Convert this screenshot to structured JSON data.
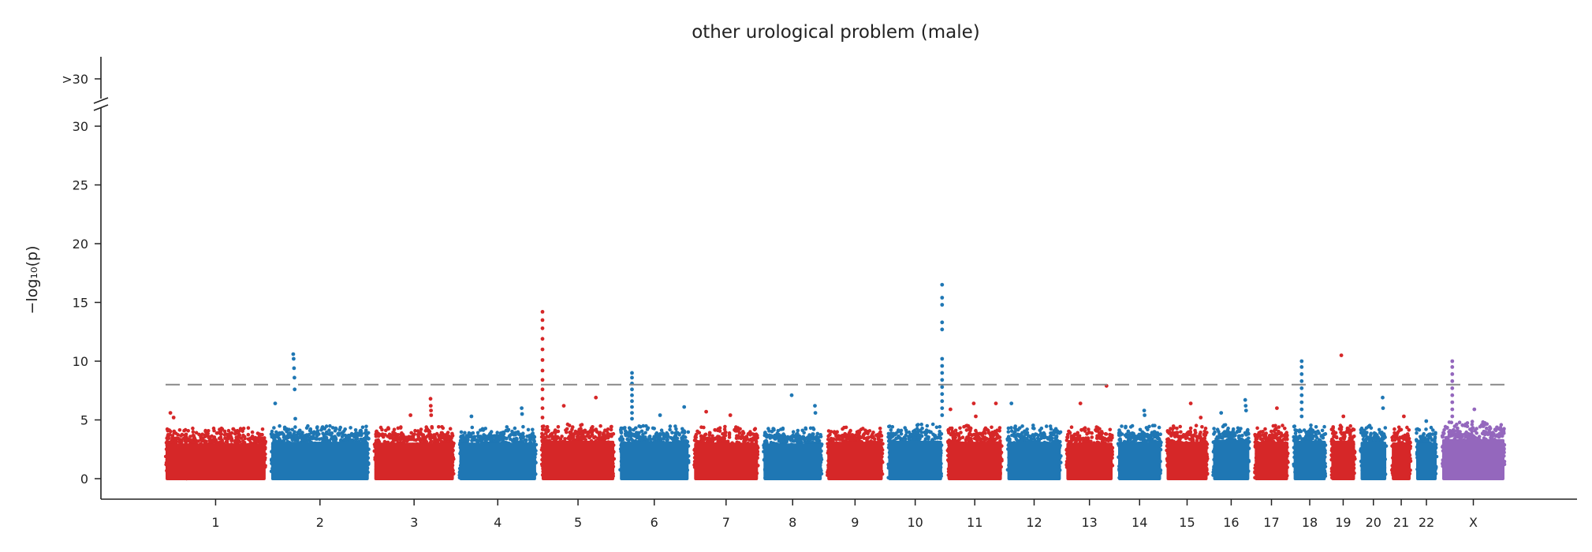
{
  "chart_data": {
    "type": "scatter",
    "subtype": "manhattan",
    "title": "other urological problem (male)",
    "ylabel": "−log₁₀(p)",
    "ylim": [
      0,
      31
    ],
    "y_ticks": [
      0,
      5,
      10,
      15,
      20,
      25,
      30
    ],
    "y_break_label": ">30",
    "significance_threshold": 8,
    "grid": false,
    "colors": {
      "odd": "#d62728",
      "even": "#1f77b4",
      "X": "#9467bd",
      "threshold": "#888888"
    },
    "chromosomes": [
      {
        "label": "1",
        "length": 249,
        "peak_max": 4,
        "hits": [
          [
            12,
            5.6
          ],
          [
            20,
            5.2
          ]
        ]
      },
      {
        "label": "2",
        "length": 243,
        "peak_max": 4.2,
        "hits": [
          [
            10,
            6.4
          ],
          [
            55,
            10.6
          ],
          [
            56,
            10.2
          ],
          [
            57,
            9.4
          ],
          [
            58,
            8.6
          ],
          [
            58.5,
            7.6
          ],
          [
            60,
            5.1
          ]
        ]
      },
      {
        "label": "3",
        "length": 198,
        "peak_max": 4.1,
        "hits": [
          [
            140,
            6.8
          ],
          [
            140.5,
            6.2
          ],
          [
            141,
            5.8
          ],
          [
            141.5,
            5.4
          ],
          [
            90,
            5.4
          ]
        ]
      },
      {
        "label": "4",
        "length": 191,
        "peak_max": 4.1,
        "hits": [
          [
            155,
            6.0
          ],
          [
            156,
            5.5
          ],
          [
            30,
            5.3
          ]
        ]
      },
      {
        "label": "5",
        "length": 181,
        "peak_max": 4.3,
        "hits": [
          [
            2,
            14.2
          ],
          [
            2,
            13.5
          ],
          [
            2,
            12.8
          ],
          [
            2,
            11.9
          ],
          [
            2,
            11.0
          ],
          [
            2,
            10.1
          ],
          [
            2,
            9.2
          ],
          [
            2,
            8.4
          ],
          [
            2,
            7.6
          ],
          [
            2,
            6.8
          ],
          [
            2,
            6.0
          ],
          [
            2,
            5.2
          ],
          [
            55,
            6.2
          ],
          [
            135,
            6.9
          ]
        ]
      },
      {
        "label": "6",
        "length": 171,
        "peak_max": 4.2,
        "hits": [
          [
            30,
            9.0
          ],
          [
            30,
            8.6
          ],
          [
            30,
            8.1
          ],
          [
            30,
            7.6
          ],
          [
            30,
            7.1
          ],
          [
            30,
            6.6
          ],
          [
            30,
            6.1
          ],
          [
            30,
            5.6
          ],
          [
            30,
            5.1
          ],
          [
            100,
            5.4
          ],
          [
            160,
            6.1
          ]
        ]
      },
      {
        "label": "7",
        "length": 159,
        "peak_max": 4.1,
        "hits": [
          [
            30,
            5.7
          ],
          [
            90,
            5.4
          ]
        ]
      },
      {
        "label": "8",
        "length": 145,
        "peak_max": 4.0,
        "hits": [
          [
            70,
            7.1
          ],
          [
            128,
            6.2
          ],
          [
            129,
            5.6
          ]
        ]
      },
      {
        "label": "9",
        "length": 138,
        "peak_max": 4.2,
        "hits": []
      },
      {
        "label": "10",
        "length": 134,
        "peak_max": 4.3,
        "hits": [
          [
            135,
            16.5
          ],
          [
            135,
            15.4
          ],
          [
            135,
            14.8
          ],
          [
            135,
            13.3
          ],
          [
            135,
            12.7
          ],
          [
            135,
            10.2
          ],
          [
            135,
            9.6
          ],
          [
            135,
            9.0
          ],
          [
            135,
            8.4
          ],
          [
            135,
            7.8
          ],
          [
            135,
            7.2
          ],
          [
            135,
            6.6
          ],
          [
            135,
            6.0
          ],
          [
            135,
            5.4
          ]
        ]
      },
      {
        "label": "11",
        "length": 135,
        "peak_max": 4.2,
        "hits": [
          [
            7,
            5.9
          ],
          [
            65,
            6.4
          ],
          [
            70,
            5.3
          ],
          [
            120,
            6.4
          ]
        ]
      },
      {
        "label": "12",
        "length": 133,
        "peak_max": 4.2,
        "hits": [
          [
            10,
            6.4
          ]
        ]
      },
      {
        "label": "13",
        "length": 115,
        "peak_max": 4.1,
        "hits": [
          [
            35,
            6.4
          ],
          [
            100,
            7.9
          ]
        ]
      },
      {
        "label": "14",
        "length": 107,
        "peak_max": 4.2,
        "hits": [
          [
            65,
            5.8
          ],
          [
            66,
            5.4
          ]
        ]
      },
      {
        "label": "15",
        "length": 102,
        "peak_max": 4.2,
        "hits": [
          [
            60,
            6.4
          ],
          [
            85,
            5.2
          ]
        ]
      },
      {
        "label": "16",
        "length": 90,
        "peak_max": 4.4,
        "hits": [
          [
            80,
            6.7
          ],
          [
            81,
            6.2
          ],
          [
            82,
            5.8
          ],
          [
            20,
            5.6
          ]
        ]
      },
      {
        "label": "17",
        "length": 83,
        "peak_max": 4.2,
        "hits": [
          [
            55,
            6.0
          ]
        ]
      },
      {
        "label": "18",
        "length": 80,
        "peak_max": 4.3,
        "hits": [
          [
            20,
            10.0
          ],
          [
            20,
            9.5
          ],
          [
            20,
            8.9
          ],
          [
            20,
            8.3
          ],
          [
            20,
            7.7
          ],
          [
            20,
            7.1
          ],
          [
            20,
            6.5
          ],
          [
            20,
            5.9
          ],
          [
            20,
            5.3
          ]
        ]
      },
      {
        "label": "19",
        "length": 59,
        "peak_max": 4.3,
        "hits": [
          [
            25,
            10.5
          ],
          [
            30,
            5.3
          ]
        ]
      },
      {
        "label": "20",
        "length": 64,
        "peak_max": 4.2,
        "hits": [
          [
            55,
            6.9
          ],
          [
            56,
            6.0
          ]
        ]
      },
      {
        "label": "21",
        "length": 47,
        "peak_max": 4.1,
        "hits": [
          [
            30,
            5.3
          ]
        ]
      },
      {
        "label": "22",
        "length": 51,
        "peak_max": 4.1,
        "hits": [
          [
            25,
            4.9
          ]
        ]
      },
      {
        "label": "X",
        "length": 155,
        "peak_max": 4.5,
        "hits": [
          [
            25,
            10.0
          ],
          [
            25,
            9.5
          ],
          [
            25,
            8.9
          ],
          [
            25,
            8.3
          ],
          [
            25,
            7.7
          ],
          [
            25,
            7.1
          ],
          [
            25,
            6.5
          ],
          [
            25,
            5.9
          ],
          [
            25,
            5.3
          ],
          [
            80,
            5.9
          ]
        ]
      }
    ]
  }
}
